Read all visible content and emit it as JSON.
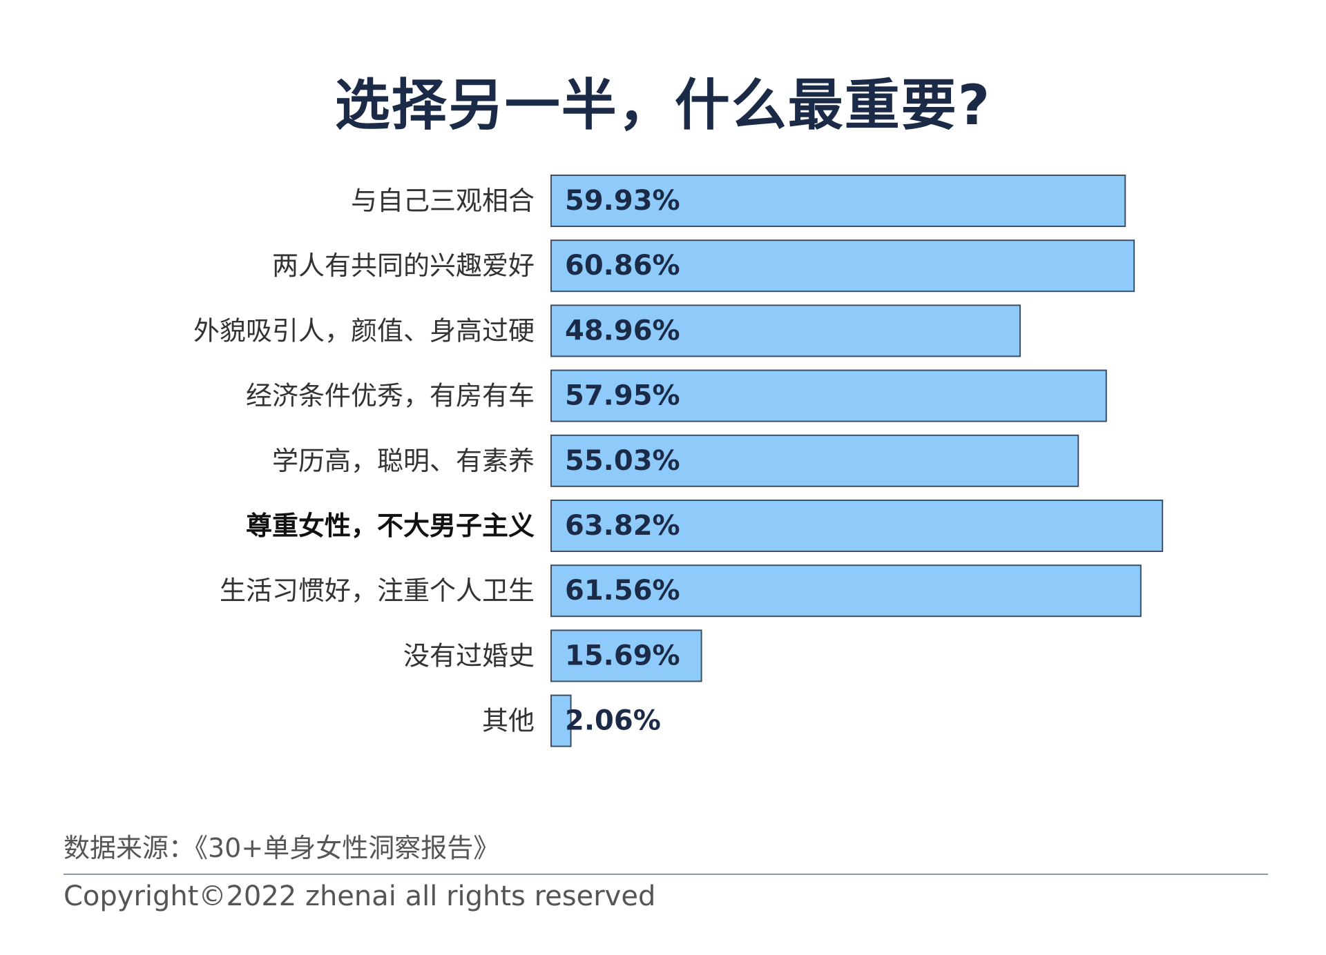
{
  "title": "选择另一半，什么最重要?",
  "chart_data": {
    "type": "bar",
    "orientation": "horizontal",
    "title": "选择另一半，什么最重要?",
    "categories": [
      "与自己三观相合",
      "两人有共同的兴趣爱好",
      "外貌吸引人，颜值、身高过硬",
      "经济条件优秀，有房有车",
      "学历高，聪明、有素养",
      "尊重女性，不大男子主义",
      "生活习惯好，注重个人卫生",
      "没有过婚史",
      "其他"
    ],
    "values": [
      59.93,
      60.86,
      48.96,
      57.95,
      55.03,
      63.82,
      61.56,
      15.69,
      2.06
    ],
    "value_labels": [
      "59.93%",
      "60.86%",
      "48.96%",
      "57.95%",
      "55.03%",
      "63.82%",
      "61.56%",
      "15.69%",
      "2.06%"
    ],
    "emphasized_category": "尊重女性，不大男子主义",
    "xlim": [
      0,
      70
    ],
    "grid": false,
    "legend": "none",
    "bar_color": "#8ecbfb",
    "bar_border_color": "#3d4f66",
    "label_color": "#333333",
    "value_color": "#1b2a47"
  },
  "footer": {
    "source": "数据来源：《30+单身女性洞察报告》",
    "copyright": "Copyright©2022  zhenai  all rights reserved"
  }
}
